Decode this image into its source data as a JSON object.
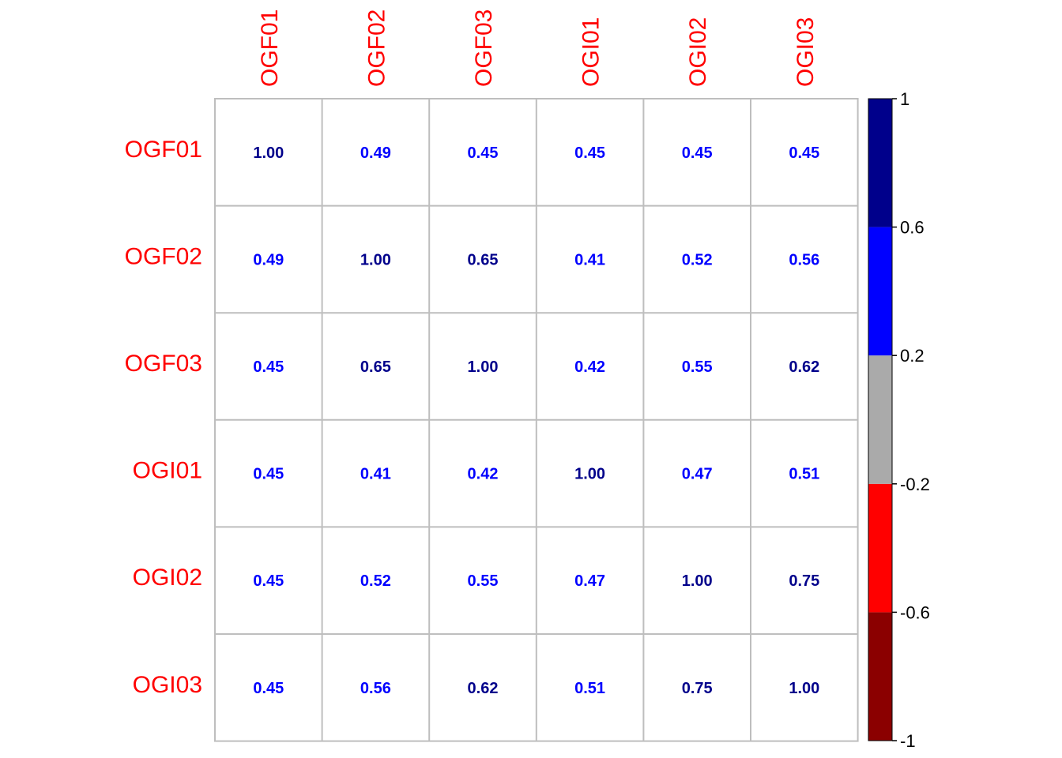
{
  "chart_data": {
    "type": "heatmap",
    "title": "",
    "variables": [
      "OGF01",
      "OGF02",
      "OGF03",
      "OGI01",
      "OGI02",
      "OGI03"
    ],
    "matrix": [
      [
        1.0,
        0.49,
        0.45,
        0.45,
        0.45,
        0.45
      ],
      [
        0.49,
        1.0,
        0.65,
        0.41,
        0.52,
        0.56
      ],
      [
        0.45,
        0.65,
        1.0,
        0.42,
        0.55,
        0.62
      ],
      [
        0.45,
        0.41,
        0.42,
        1.0,
        0.47,
        0.51
      ],
      [
        0.45,
        0.52,
        0.55,
        0.47,
        1.0,
        0.75
      ],
      [
        0.45,
        0.56,
        0.62,
        0.51,
        0.75,
        1.0
      ]
    ],
    "matrix_labels": [
      [
        "1.00",
        "0.49",
        "0.45",
        "0.45",
        "0.45",
        "0.45"
      ],
      [
        "0.49",
        "1.00",
        "0.65",
        "0.41",
        "0.52",
        "0.56"
      ],
      [
        "0.45",
        "0.65",
        "1.00",
        "0.42",
        "0.55",
        "0.62"
      ],
      [
        "0.45",
        "0.41",
        "0.42",
        "1.00",
        "0.47",
        "0.51"
      ],
      [
        "0.45",
        "0.52",
        "0.55",
        "0.47",
        "1.00",
        "0.75"
      ],
      [
        "0.45",
        "0.56",
        "0.62",
        "0.51",
        "0.75",
        "1.00"
      ]
    ],
    "label_color": "#ff0000",
    "grid_color": "#bebebe",
    "color_scale": {
      "range": [
        -1,
        1
      ],
      "ticks": [
        1,
        0.6,
        0.2,
        -0.2,
        -0.6,
        -1
      ],
      "tick_labels": [
        "1",
        "0.6",
        "0.2",
        "-0.2",
        "-0.6",
        "-1"
      ],
      "bins": [
        {
          "from": -1.0,
          "to": -0.6,
          "color": "#8b0000"
        },
        {
          "from": -0.6,
          "to": -0.2,
          "color": "#ff0000"
        },
        {
          "from": -0.2,
          "to": 0.2,
          "color": "#aaaaaa"
        },
        {
          "from": 0.2,
          "to": 0.6,
          "color": "#0000ff"
        },
        {
          "from": 0.6,
          "to": 1.0,
          "color": "#00008b"
        }
      ]
    },
    "legend_placement": "right"
  }
}
